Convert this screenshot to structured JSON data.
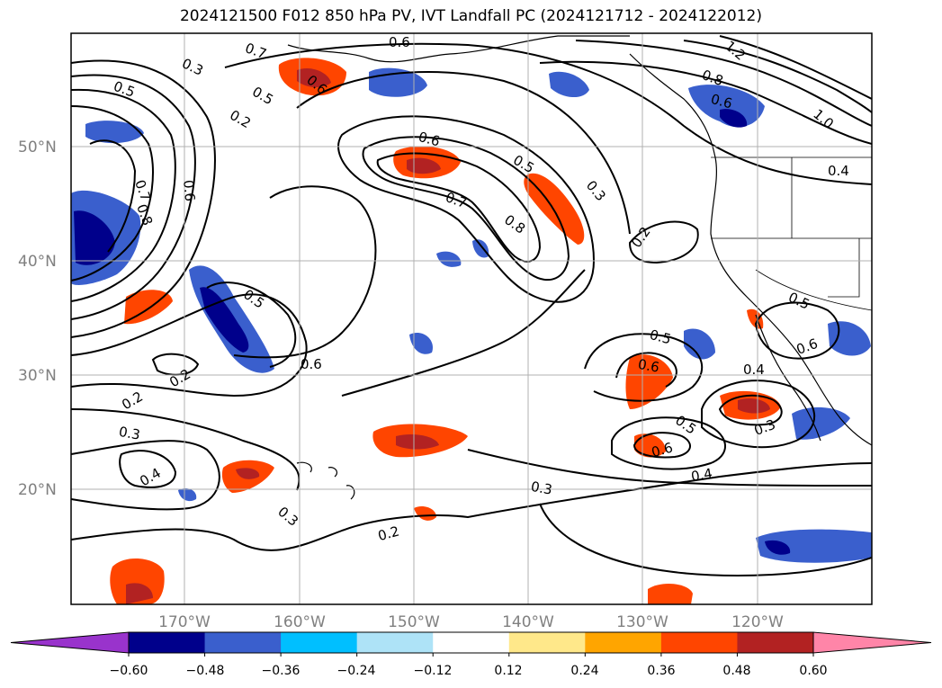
{
  "title": "2024121500 F012 850 hPa PV, IVT Landfall PC (2024121712 - 2024122012)",
  "map": {
    "lat_labels": [
      "50°N",
      "40°N",
      "30°N",
      "20°N"
    ],
    "lon_labels": [
      "170°W",
      "160°W",
      "150°W",
      "140°W",
      "130°W",
      "120°W"
    ],
    "lat_values": [
      50,
      40,
      30,
      20
    ],
    "lon_values": [
      -170,
      -160,
      -150,
      -140,
      -130,
      -120
    ],
    "extent": {
      "lon": [
        -180,
        -110
      ],
      "lat": [
        10,
        60
      ]
    },
    "contour_labels": [
      "0.7",
      "0.6",
      "0.3",
      "0.5",
      "0.2",
      "0.5",
      "0.6",
      "0.7",
      "0.8",
      "0.6",
      "0.6",
      "0.5",
      "0.7",
      "0.8",
      "0.3",
      "0.2",
      "0.8",
      "0.6",
      "1.2",
      "1.0",
      "0.4",
      "0.5",
      "0.6",
      "0.2",
      "0.2",
      "0.3",
      "0.4",
      "0.3",
      "0.5",
      "0.6",
      "0.4",
      "0.5",
      "0.6",
      "0.3",
      "0.4",
      "0.3",
      "0.2",
      "0.5",
      "0.6"
    ]
  },
  "colorbar": {
    "tick_labels": [
      "−0.60",
      "−0.48",
      "−0.36",
      "−0.24",
      "−0.12",
      "0.12",
      "0.24",
      "0.36",
      "0.48",
      "0.60"
    ],
    "colors": [
      "#9933cc",
      "#00008b",
      "#3a5fcd",
      "#00bfff",
      "#aee3f7",
      "#ffffff",
      "#ffe88a",
      "#ffa500",
      "#ff4500",
      "#b22222",
      "#ff85a8"
    ]
  }
}
